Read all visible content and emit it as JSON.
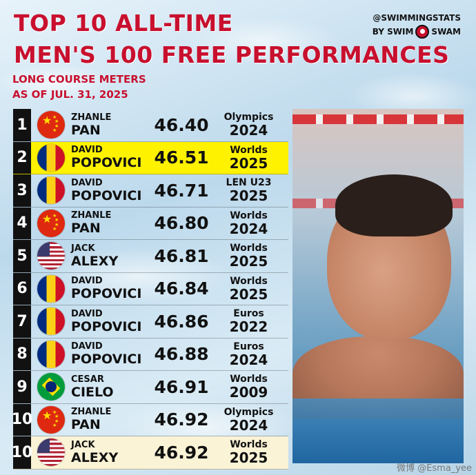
{
  "title": {
    "line1": "TOP 10 ALL-TIME",
    "line2": "MEN'S 100 FREE PERFORMANCES",
    "course": "LONG COURSE METERS",
    "as_of": "AS OF JUL. 31, 2025"
  },
  "brand": {
    "handle": "@SWIMMINGSTATS",
    "by": "BY SWIM",
    "swam": "SWAM"
  },
  "rows": [
    {
      "rank": "1",
      "flag": "china-flag",
      "first": "ZHANLE",
      "last": "PAN",
      "time": "46.40",
      "meet": "Olympics",
      "year": "2024",
      "highlight": "none"
    },
    {
      "rank": "2",
      "flag": "romania-flag",
      "first": "DAVID",
      "last": "POPOVICI",
      "time": "46.51",
      "meet": "Worlds",
      "year": "2025",
      "highlight": "#fff200"
    },
    {
      "rank": "3",
      "flag": "romania-flag",
      "first": "DAVID",
      "last": "POPOVICI",
      "time": "46.71",
      "meet": "LEN U23",
      "year": "2025",
      "highlight": "none"
    },
    {
      "rank": "4",
      "flag": "china-flag",
      "first": "ZHANLE",
      "last": "PAN",
      "time": "46.80",
      "meet": "Worlds",
      "year": "2024",
      "highlight": "none"
    },
    {
      "rank": "5",
      "flag": "usa-flag",
      "first": "JACK",
      "last": "ALEXY",
      "time": "46.81",
      "meet": "Worlds",
      "year": "2025",
      "highlight": "none"
    },
    {
      "rank": "6",
      "flag": "romania-flag",
      "first": "DAVID",
      "last": "POPOVICI",
      "time": "46.84",
      "meet": "Worlds",
      "year": "2025",
      "highlight": "none"
    },
    {
      "rank": "7",
      "flag": "romania-flag",
      "first": "DAVID",
      "last": "POPOVICI",
      "time": "46.86",
      "meet": "Euros",
      "year": "2022",
      "highlight": "none"
    },
    {
      "rank": "8",
      "flag": "romania-flag",
      "first": "DAVID",
      "last": "POPOVICI",
      "time": "46.88",
      "meet": "Euros",
      "year": "2024",
      "highlight": "none"
    },
    {
      "rank": "9",
      "flag": "brazil-flag",
      "first": "CESAR",
      "last": "CIELO",
      "time": "46.91",
      "meet": "Worlds",
      "year": "2009",
      "highlight": "none"
    },
    {
      "rank": "10",
      "flag": "china-flag",
      "first": "ZHANLE",
      "last": "PAN",
      "time": "46.92",
      "meet": "Olympics",
      "year": "2024",
      "highlight": "none"
    },
    {
      "rank": "10",
      "flag": "usa-flag",
      "first": "JACK",
      "last": "ALEXY",
      "time": "46.92",
      "meet": "Worlds",
      "year": "2025",
      "highlight": "#fbf3d6"
    }
  ],
  "colors": {
    "title_red": "#c8102e",
    "rank_bg": "#111111",
    "highlight_yellow": "#fff200",
    "highlight_cream": "#fbf3d6"
  },
  "watermark": "微博 @Esma_yee"
}
